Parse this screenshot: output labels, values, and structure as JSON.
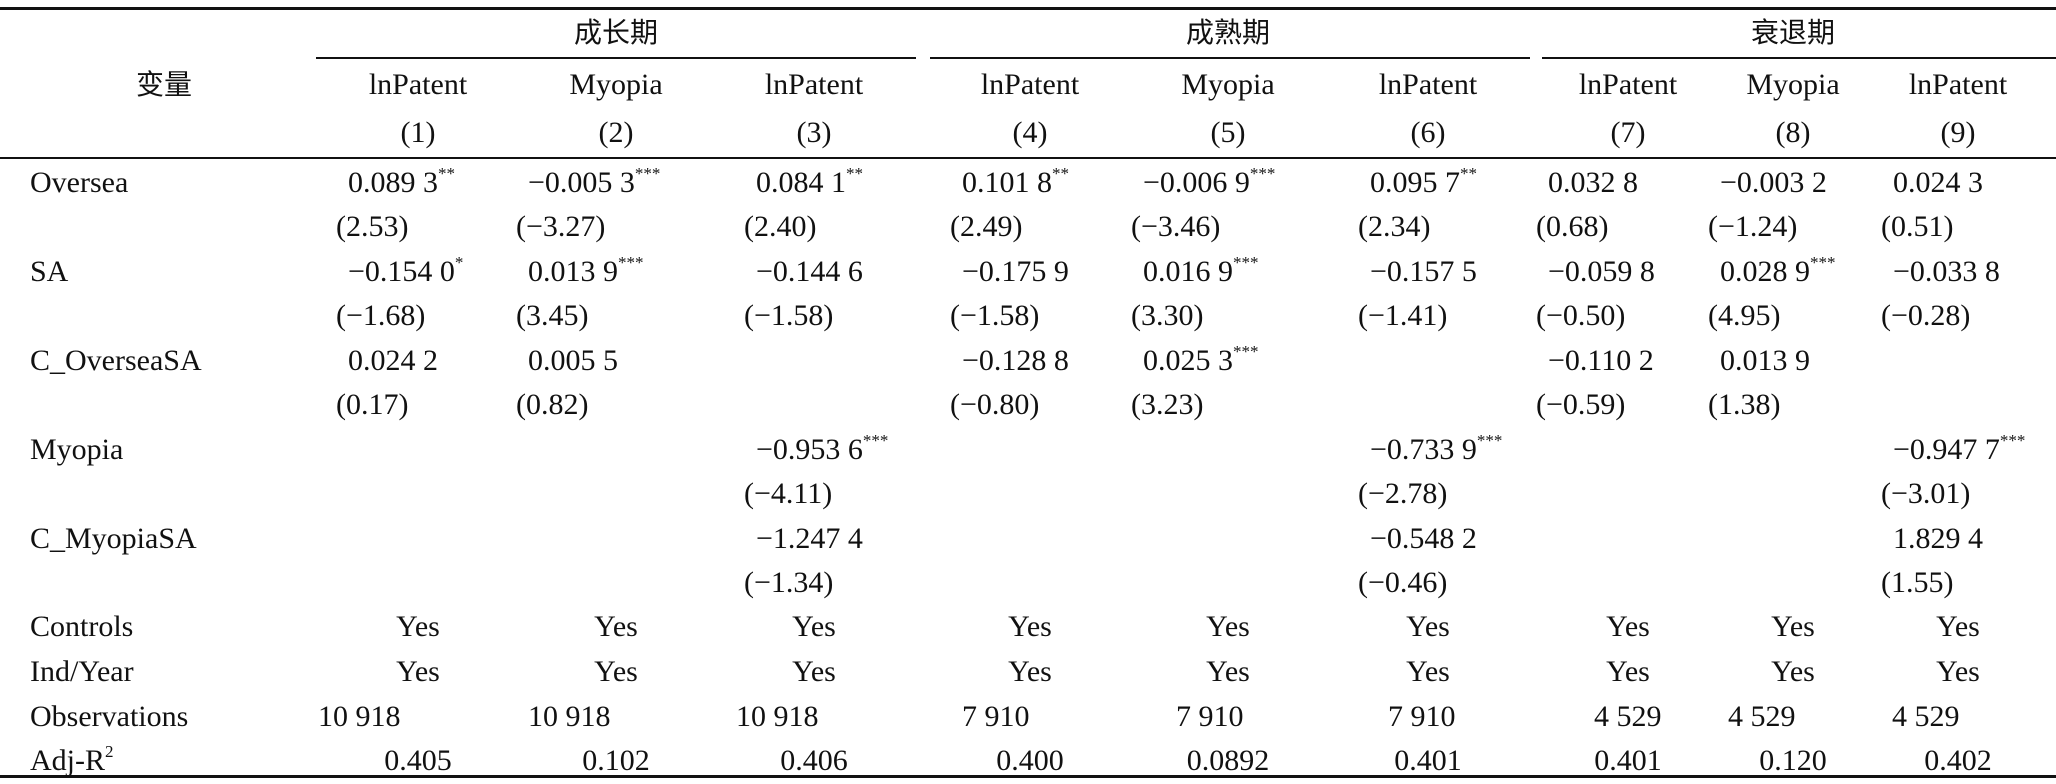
{
  "table": {
    "var_header": "变量",
    "groups": [
      "成长期",
      "成熟期",
      "衰退期"
    ],
    "dep_vars": [
      "lnPatent",
      "Myopia",
      "lnPatent",
      "lnPatent",
      "Myopia",
      "lnPatent",
      "lnPatent",
      "Myopia",
      "lnPatent"
    ],
    "col_nums": [
      "(1)",
      "(2)",
      "(3)",
      "(4)",
      "(5)",
      "(6)",
      "(7)",
      "(8)",
      "(9)"
    ],
    "rows": [
      {
        "label": "Oversea",
        "coef": [
          {
            "v": "0.089 3",
            "s": "**"
          },
          {
            "v": "−0.005 3",
            "s": "***"
          },
          {
            "v": "0.084 1",
            "s": "**"
          },
          {
            "v": "0.101 8",
            "s": "**"
          },
          {
            "v": "−0.006 9",
            "s": "***"
          },
          {
            "v": "0.095 7",
            "s": "**"
          },
          {
            "v": "0.032 8",
            "s": ""
          },
          {
            "v": "−0.003 2",
            "s": ""
          },
          {
            "v": "0.024 3",
            "s": ""
          }
        ],
        "t": [
          "(2.53)",
          "(−3.27)",
          "(2.40)",
          "(2.49)",
          "(−3.46)",
          "(2.34)",
          "(0.68)",
          "(−1.24)",
          "(0.51)"
        ]
      },
      {
        "label": "SA",
        "coef": [
          {
            "v": "−0.154 0",
            "s": "*"
          },
          {
            "v": "0.013 9",
            "s": "***"
          },
          {
            "v": "−0.144 6",
            "s": ""
          },
          {
            "v": "−0.175 9",
            "s": ""
          },
          {
            "v": "0.016 9",
            "s": "***"
          },
          {
            "v": "−0.157 5",
            "s": ""
          },
          {
            "v": "−0.059 8",
            "s": ""
          },
          {
            "v": "0.028 9",
            "s": "***"
          },
          {
            "v": "−0.033 8",
            "s": ""
          }
        ],
        "t": [
          "(−1.68)",
          "(3.45)",
          "(−1.58)",
          "(−1.58)",
          "(3.30)",
          "(−1.41)",
          "(−0.50)",
          "(4.95)",
          "(−0.28)"
        ]
      },
      {
        "label": "C_OverseaSA",
        "coef": [
          {
            "v": "0.024 2",
            "s": ""
          },
          {
            "v": "0.005 5",
            "s": ""
          },
          {
            "v": "",
            "s": ""
          },
          {
            "v": "−0.128 8",
            "s": ""
          },
          {
            "v": "0.025 3",
            "s": "***"
          },
          {
            "v": "",
            "s": ""
          },
          {
            "v": "−0.110 2",
            "s": ""
          },
          {
            "v": "0.013 9",
            "s": ""
          },
          {
            "v": "",
            "s": ""
          }
        ],
        "t": [
          "(0.17)",
          "(0.82)",
          "",
          "(−0.80)",
          "(3.23)",
          "",
          "(−0.59)",
          "(1.38)",
          ""
        ]
      },
      {
        "label": "Myopia",
        "coef": [
          {
            "v": "",
            "s": ""
          },
          {
            "v": "",
            "s": ""
          },
          {
            "v": "−0.953 6",
            "s": "***"
          },
          {
            "v": "",
            "s": ""
          },
          {
            "v": "",
            "s": ""
          },
          {
            "v": "−0.733 9",
            "s": "***"
          },
          {
            "v": "",
            "s": ""
          },
          {
            "v": "",
            "s": ""
          },
          {
            "v": "−0.947 7",
            "s": "***"
          }
        ],
        "t": [
          "",
          "",
          "(−4.11)",
          "",
          "",
          "(−2.78)",
          "",
          "",
          "(−3.01)"
        ]
      },
      {
        "label": "C_MyopiaSA",
        "coef": [
          {
            "v": "",
            "s": ""
          },
          {
            "v": "",
            "s": ""
          },
          {
            "v": "−1.247 4",
            "s": ""
          },
          {
            "v": "",
            "s": ""
          },
          {
            "v": "",
            "s": ""
          },
          {
            "v": "−0.548 2",
            "s": ""
          },
          {
            "v": "",
            "s": ""
          },
          {
            "v": "",
            "s": ""
          },
          {
            "v": "1.829 4",
            "s": ""
          }
        ],
        "t": [
          "",
          "",
          "(−1.34)",
          "",
          "",
          "(−0.46)",
          "",
          "",
          "(1.55)"
        ]
      }
    ],
    "controls": {
      "label": "Controls",
      "values": [
        "Yes",
        "Yes",
        "Yes",
        "Yes",
        "Yes",
        "Yes",
        "Yes",
        "Yes",
        "Yes"
      ]
    },
    "indyear": {
      "label": "Ind/Year",
      "values": [
        "Yes",
        "Yes",
        "Yes",
        "Yes",
        "Yes",
        "Yes",
        "Yes",
        "Yes",
        "Yes"
      ]
    },
    "observations": {
      "label": "Observations",
      "values": [
        "10 918",
        "10 918",
        "10 918",
        "7 910",
        "7 910",
        "7 910",
        "4 529",
        "4 529",
        "4 529"
      ]
    },
    "adjr2": {
      "label": "Adj-R",
      "label_sup": "2",
      "values": [
        "0.405",
        "0.102",
        "0.406",
        "0.400",
        "0.0892",
        "0.401",
        "0.401",
        "0.120",
        "0.402"
      ]
    }
  }
}
